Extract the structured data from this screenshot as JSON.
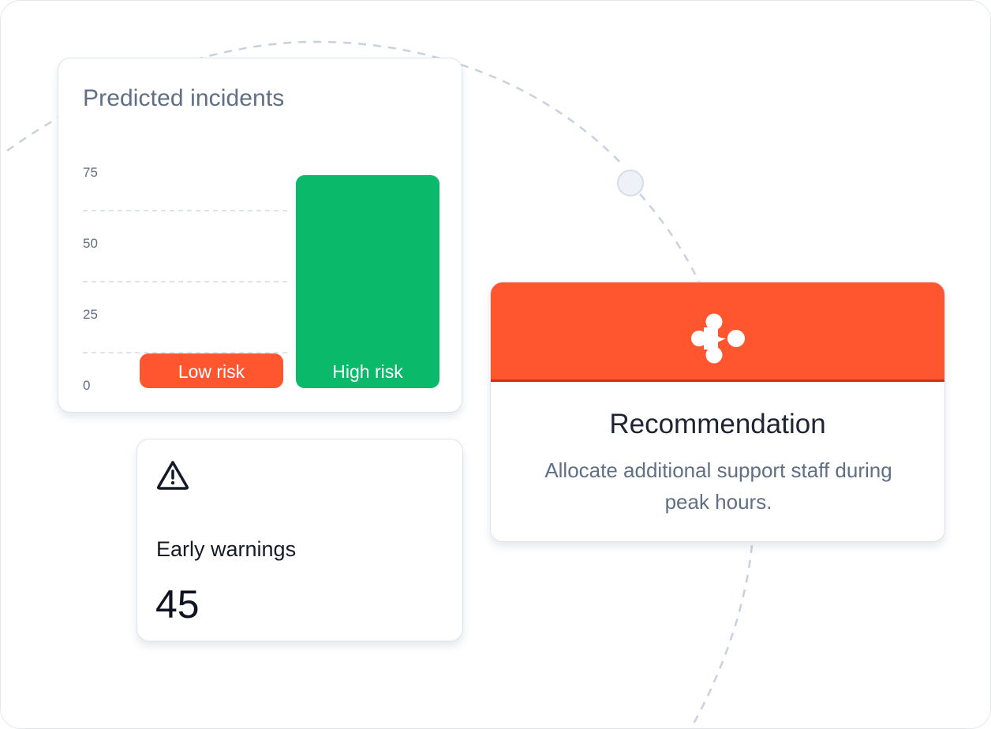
{
  "chart_data": {
    "type": "bar",
    "title": "Predicted incidents",
    "xlabel": "",
    "ylabel": "",
    "categories": [
      "Low risk",
      "High risk"
    ],
    "values": [
      8,
      75
    ],
    "y_ticks": [
      "0",
      "25",
      "50",
      "75"
    ],
    "ylim": [
      0,
      80
    ],
    "grid": true,
    "colors": {
      "Low risk": "#ff5630",
      "High risk": "#0bb96b"
    }
  },
  "warnings": {
    "icon": "warning-triangle-icon",
    "label": "Early warnings",
    "value": "45"
  },
  "recommendation": {
    "icon": "recommendation-logo-icon",
    "title": "Recommendation",
    "body": "Allocate additional support staff during peak hours.",
    "accent": "#ff5630"
  }
}
